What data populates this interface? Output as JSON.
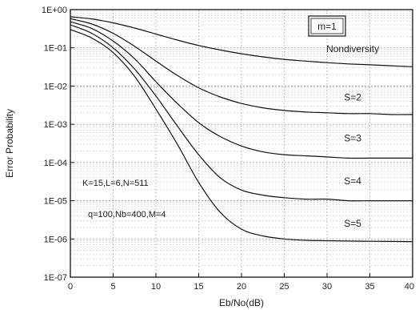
{
  "chart_data": {
    "type": "line",
    "title": "",
    "xlabel": "Eb/No(dB)",
    "ylabel": "Error Probability",
    "xlim": [
      0,
      40
    ],
    "ylim": [
      1e-07,
      1
    ],
    "y_scale": "log",
    "grid": true,
    "x_ticks": [
      0,
      5,
      10,
      15,
      20,
      25,
      30,
      35,
      40
    ],
    "x_tick_labels": [
      "0",
      "5",
      "10",
      "15",
      "20",
      "25",
      "30",
      "35",
      "40"
    ],
    "y_ticks": [
      1,
      0.1,
      0.01,
      0.001,
      0.0001,
      1e-05,
      1e-06,
      1e-07
    ],
    "y_tick_labels": [
      "1E+00",
      "1E-01",
      "1E-02",
      "1E-03",
      "1E-04",
      "1E-05",
      "1E-06",
      "1E-07"
    ],
    "legend_box": "m=1",
    "annotations": [
      "K=15,L=6,N=511",
      "q=100,Nb=400,M=4"
    ],
    "series": [
      {
        "name": "Nondiversity",
        "x": [
          0,
          2.5,
          5,
          7.5,
          10,
          12.5,
          15,
          17.5,
          20,
          22.5,
          25,
          27.5,
          30,
          32.5,
          35,
          37.5,
          40
        ],
        "y": [
          0.65,
          0.57,
          0.45,
          0.33,
          0.23,
          0.16,
          0.115,
          0.088,
          0.07,
          0.058,
          0.05,
          0.045,
          0.041,
          0.038,
          0.036,
          0.034,
          0.032
        ]
      },
      {
        "name": "S=2",
        "x": [
          0,
          2.5,
          5,
          7.5,
          10,
          12.5,
          15,
          17.5,
          20,
          22.5,
          25,
          27.5,
          30,
          32.5,
          35,
          37.5,
          40
        ],
        "y": [
          0.58,
          0.42,
          0.24,
          0.11,
          0.045,
          0.019,
          0.009,
          0.0052,
          0.0035,
          0.0027,
          0.0023,
          0.0021,
          0.002,
          0.0019,
          0.0019,
          0.0018,
          0.0018
        ]
      },
      {
        "name": "S=3",
        "x": [
          0,
          2.5,
          5,
          7.5,
          10,
          12.5,
          15,
          17.5,
          20,
          22.5,
          25,
          27.5,
          30,
          32.5,
          35,
          37.5,
          40
        ],
        "y": [
          0.48,
          0.32,
          0.15,
          0.052,
          0.013,
          0.0035,
          0.0011,
          0.00048,
          0.00027,
          0.00019,
          0.00016,
          0.00015,
          0.00014,
          0.00013,
          0.00013,
          0.00013,
          0.00013
        ]
      },
      {
        "name": "S=4",
        "x": [
          0,
          2.5,
          5,
          7.5,
          10,
          12.5,
          15,
          17.5,
          20,
          22.5,
          25,
          27.5,
          30,
          32.5,
          35,
          37.5,
          40
        ],
        "y": [
          0.4,
          0.24,
          0.1,
          0.028,
          0.0055,
          0.0009,
          0.00016,
          4e-05,
          1.9e-05,
          1.4e-05,
          1.2e-05,
          1.1e-05,
          1.1e-05,
          1e-05,
          1e-05,
          1e-05,
          1e-05
        ]
      },
      {
        "name": "S=5",
        "x": [
          0,
          2.5,
          5,
          7.5,
          10,
          12.5,
          15,
          17.5,
          20,
          22.5,
          25,
          27.5,
          30,
          32.5,
          35,
          37.5,
          40
        ],
        "y": [
          0.3,
          0.18,
          0.075,
          0.018,
          0.0025,
          0.0003,
          3e-05,
          5e-06,
          1.8e-06,
          1.2e-06,
          1e-06,
          9.2e-07,
          9e-07,
          8.8e-07,
          8.7e-07,
          8.6e-07,
          8.5e-07
        ]
      }
    ]
  }
}
